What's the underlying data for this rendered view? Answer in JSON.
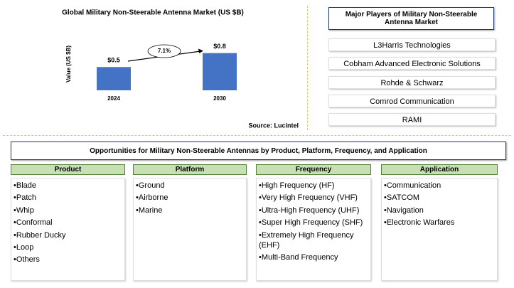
{
  "chart_data": {
    "type": "bar",
    "title": "Global Military Non-Steerable Antenna Market (US $B)",
    "ylabel": "Value (US $B)",
    "categories": [
      "2024",
      "2030"
    ],
    "values": [
      0.5,
      0.8
    ],
    "value_labels": [
      "$0.5",
      "$0.8"
    ],
    "color": "#4472c4",
    "ylim": [
      0,
      1.1
    ],
    "annotation": "7.1%",
    "source": "Source: Lucintel"
  },
  "players": {
    "title": "Major Players of Military Non-Steerable Antenna Market",
    "items": [
      "L3Harris Technologies",
      "Cobham Advanced Electronic Solutions",
      "Rohde & Schwarz",
      "Comrod Communication",
      "RAMI"
    ]
  },
  "opportunities": {
    "title": "Opportunities for Military Non-Steerable Antennas by Product, Platform, Frequency, and Application",
    "columns": [
      {
        "header": "Product",
        "items": [
          "Blade",
          "Patch",
          "Whip",
          "Conformal",
          "Rubber Ducky",
          "Loop",
          "Others"
        ]
      },
      {
        "header": "Platform",
        "items": [
          "Ground",
          "Airborne",
          "Marine"
        ]
      },
      {
        "header": "Frequency",
        "items": [
          "High Frequency (HF)",
          "Very High Frequency (VHF)",
          "Ultra-High Frequency (UHF)",
          "Super High Frequency (SHF)",
          "Extremely High Frequency (EHF)",
          "Multi-Band Frequency"
        ]
      },
      {
        "header": "Application",
        "items": [
          "Communication",
          "SATCOM",
          "Navigation",
          "Electronic Warfares"
        ]
      }
    ]
  }
}
